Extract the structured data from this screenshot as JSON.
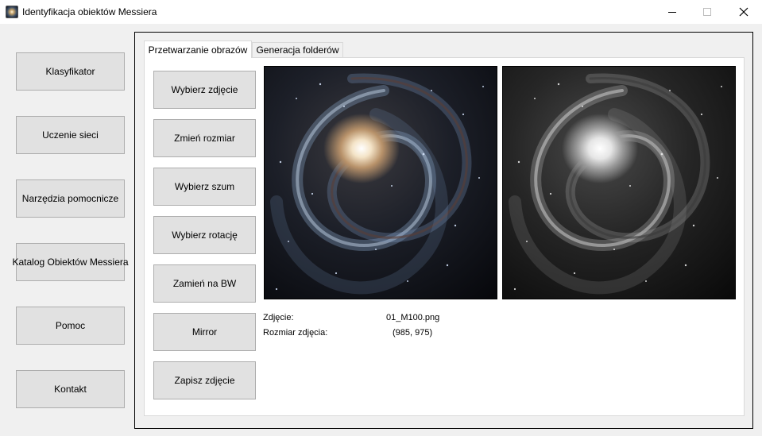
{
  "window": {
    "title": "Identyfikacja obiektów Messiera"
  },
  "window_controls": {
    "minimize_icon": "minimize-icon",
    "maximize_icon": "maximize-icon",
    "close_icon": "close-icon"
  },
  "sidebar": {
    "items": [
      {
        "label": "Klasyfikator"
      },
      {
        "label": "Uczenie sieci"
      },
      {
        "label": "Narzędzia pomocnicze"
      },
      {
        "label": "Katalog Obiektów Messiera"
      },
      {
        "label": "Pomoc"
      },
      {
        "label": "Kontakt"
      }
    ]
  },
  "tabs": [
    {
      "label": "Przetwarzanie obrazów",
      "active": true
    },
    {
      "label": "Generacja folderów",
      "active": false
    }
  ],
  "actions": [
    {
      "label": "Wybierz zdjęcie"
    },
    {
      "label": "Zmień rozmiar"
    },
    {
      "label": "Wybierz szum"
    },
    {
      "label": "Wybierz rotację"
    },
    {
      "label": "Zamień na BW"
    },
    {
      "label": "Mirror"
    },
    {
      "label": "Zapisz zdjęcie"
    }
  ],
  "info": {
    "file_label": "Zdjęcie:",
    "file_value": "01_M100.png",
    "size_label": "Rozmiar zdjęcia:",
    "size_value": "(985, 975)"
  },
  "colors": {
    "button_bg": "#e1e1e1",
    "button_border": "#adadad",
    "window_bg": "#f0f0f0",
    "panel_bg": "#ffffff"
  }
}
